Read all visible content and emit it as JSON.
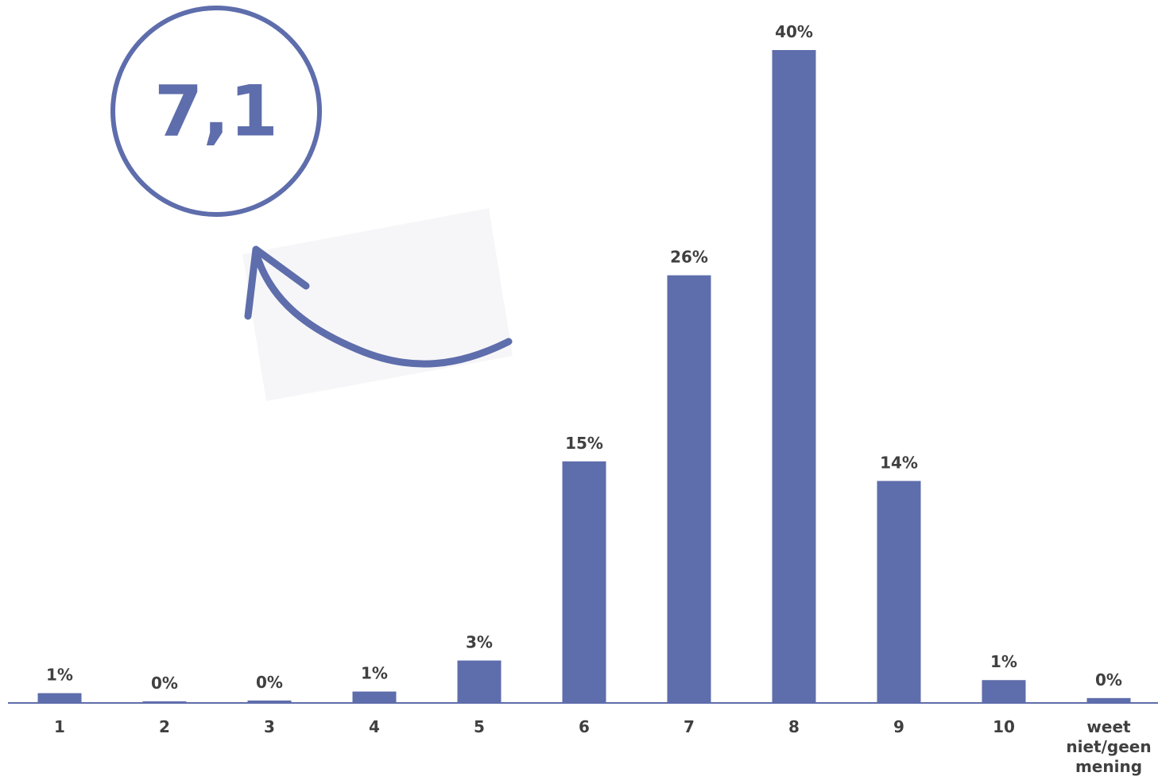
{
  "chart_data": {
    "type": "bar",
    "annotation": "7,1",
    "categories": [
      "1",
      "2",
      "3",
      "4",
      "5",
      "6",
      "7",
      "8",
      "9",
      "10",
      "weet niet/geen mening"
    ],
    "values": [
      0.6,
      0.1,
      0.15,
      0.7,
      2.6,
      14.8,
      26.2,
      40,
      13.6,
      1.4,
      0.3
    ],
    "value_labels": [
      "1%",
      "0%",
      "0%",
      "1%",
      "3%",
      "15%",
      "26%",
      "40%",
      "14%",
      "1%",
      "0%"
    ],
    "color": "#5e6dab"
  }
}
